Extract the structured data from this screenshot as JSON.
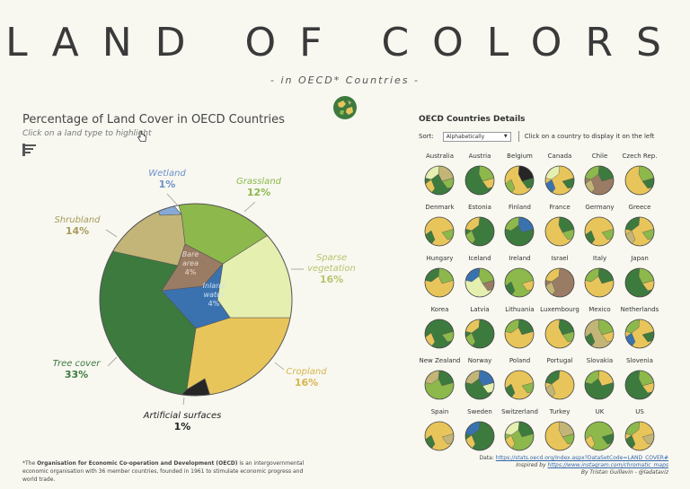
{
  "header": {
    "title": "LAND OF COLORS",
    "subtitle": "- in OECD* Countries -"
  },
  "left": {
    "title": "Percentage of Land Cover in OECD Countries",
    "hint": "Click on a land type to highlight"
  },
  "colors": {
    "tree_cover": "#3d7a3e",
    "cropland": "#e8c55a",
    "sparse_vegetation": "#e4efb0",
    "grassland": "#8db84b",
    "wetland": "#86a9d6",
    "shrubland": "#c3b577",
    "bare_area": "#9a7b64",
    "inland_water": "#3a72b0",
    "artificial_surfaces": "#262626"
  },
  "chart_data": {
    "type": "pie",
    "title": "Percentage of Land Cover in OECD Countries",
    "slices": [
      {
        "name": "Tree cover",
        "value": 33,
        "label": "33%"
      },
      {
        "name": "Artificial surfaces",
        "value": 1,
        "label": "1%"
      },
      {
        "name": "Cropland",
        "value": 16,
        "label": "16%"
      },
      {
        "name": "Sparse vegetation",
        "value": 16,
        "label": "16%"
      },
      {
        "name": "Grassland",
        "value": 12,
        "label": "12%"
      },
      {
        "name": "Wetland",
        "value": 1,
        "label": "1%"
      },
      {
        "name": "Shrubland",
        "value": 14,
        "label": "14%"
      },
      {
        "name": "Bare area",
        "value": 4,
        "label": "4%"
      },
      {
        "name": "Inland water",
        "value": 4,
        "label": "4%"
      }
    ]
  },
  "labels": {
    "wetland": {
      "name": "Wetland",
      "pct": "1%"
    },
    "grassland": {
      "name": "Grassland",
      "pct": "12%"
    },
    "shrubland": {
      "name": "Shrubland",
      "pct": "14%"
    },
    "sparse": {
      "name1": "Sparse",
      "name2": "vegetation",
      "pct": "16%"
    },
    "bare": {
      "name1": "Bare",
      "name2": "area",
      "pct": "4%"
    },
    "water": {
      "name1": "Inland",
      "name2": "water",
      "pct": "4%"
    },
    "tree": {
      "name": "Tree cover",
      "pct": "33%"
    },
    "cropland": {
      "name": "Cropland",
      "pct": "16%"
    },
    "artificial": {
      "name": "Artificial surfaces",
      "pct": "1%"
    }
  },
  "right": {
    "title": "OECD Countries Details",
    "sort_label": "Sort:",
    "sort_value": "Alphabetically",
    "hint": "Click on a country to display it on the left"
  },
  "countries": [
    {
      "name": "Australia",
      "mix": [
        "tree_cover",
        "shrubland",
        "sparse_vegetation",
        "cropland",
        "grassland"
      ]
    },
    {
      "name": "Austria",
      "mix": [
        "tree_cover",
        "cropland",
        "grassland"
      ]
    },
    {
      "name": "Belgium",
      "mix": [
        "cropland",
        "grassland",
        "tree_cover",
        "artificial_surfaces"
      ]
    },
    {
      "name": "Canada",
      "mix": [
        "cropland",
        "sparse_vegetation",
        "inland_water",
        "tree_cover"
      ]
    },
    {
      "name": "Chile",
      "mix": [
        "bare_area",
        "tree_cover",
        "grassland",
        "shrubland"
      ]
    },
    {
      "name": "Czech Rep.",
      "mix": [
        "cropland",
        "tree_cover",
        "grassland"
      ]
    },
    {
      "name": "Denmark",
      "mix": [
        "cropland",
        "tree_cover",
        "grassland"
      ]
    },
    {
      "name": "Estonia",
      "mix": [
        "tree_cover",
        "cropland",
        "grassland"
      ]
    },
    {
      "name": "Finland",
      "mix": [
        "tree_cover",
        "inland_water",
        "grassland"
      ]
    },
    {
      "name": "France",
      "mix": [
        "cropland",
        "grassland",
        "tree_cover"
      ]
    },
    {
      "name": "Germany",
      "mix": [
        "cropland",
        "tree_cover",
        "grassland"
      ]
    },
    {
      "name": "Greece",
      "mix": [
        "cropland",
        "tree_cover",
        "shrubland",
        "grassland"
      ]
    },
    {
      "name": "Hungary",
      "mix": [
        "cropland",
        "grassland",
        "tree_cover"
      ]
    },
    {
      "name": "Iceland",
      "mix": [
        "sparse_vegetation",
        "bare_area",
        "grassland",
        "inland_water"
      ]
    },
    {
      "name": "Ireland",
      "mix": [
        "grassland",
        "tree_cover",
        "cropland"
      ]
    },
    {
      "name": "Israel",
      "mix": [
        "bare_area",
        "cropland",
        "shrubland"
      ]
    },
    {
      "name": "Italy",
      "mix": [
        "cropland",
        "tree_cover",
        "grassland"
      ]
    },
    {
      "name": "Japan",
      "mix": [
        "tree_cover",
        "cropland",
        "grassland"
      ]
    },
    {
      "name": "Korea",
      "mix": [
        "tree_cover",
        "cropland",
        "grassland"
      ]
    },
    {
      "name": "Latvia",
      "mix": [
        "tree_cover",
        "cropland",
        "grassland"
      ]
    },
    {
      "name": "Lithuania",
      "mix": [
        "cropland",
        "tree_cover",
        "grassland"
      ]
    },
    {
      "name": "Luxembourg",
      "mix": [
        "cropland",
        "grassland",
        "tree_cover"
      ]
    },
    {
      "name": "Mexico",
      "mix": [
        "shrubland",
        "tree_cover",
        "cropland",
        "grassland"
      ]
    },
    {
      "name": "Netherlands",
      "mix": [
        "cropland",
        "grassland",
        "inland_water",
        "tree_cover"
      ]
    },
    {
      "name": "New Zealand",
      "mix": [
        "grassland",
        "tree_cover",
        "shrubland"
      ]
    },
    {
      "name": "Norway",
      "mix": [
        "tree_cover",
        "sparse_vegetation",
        "inland_water",
        "shrubland"
      ]
    },
    {
      "name": "Poland",
      "mix": [
        "cropland",
        "tree_cover",
        "grassland"
      ]
    },
    {
      "name": "Portugal",
      "mix": [
        "cropland",
        "tree_cover",
        "shrubland"
      ]
    },
    {
      "name": "Slovakia",
      "mix": [
        "tree_cover",
        "cropland",
        "grassland"
      ]
    },
    {
      "name": "Slovenia",
      "mix": [
        "tree_cover",
        "cropland",
        "grassland"
      ]
    },
    {
      "name": "Spain",
      "mix": [
        "cropland",
        "tree_cover",
        "shrubland"
      ]
    },
    {
      "name": "Sweden",
      "mix": [
        "tree_cover",
        "inland_water",
        "cropland"
      ]
    },
    {
      "name": "Switzerland",
      "mix": [
        "grassland",
        "tree_cover",
        "sparse_vegetation",
        "cropland"
      ]
    },
    {
      "name": "Turkey",
      "mix": [
        "cropland",
        "grassland",
        "shrubland"
      ]
    },
    {
      "name": "UK",
      "mix": [
        "grassland",
        "cropland",
        "tree_cover"
      ]
    },
    {
      "name": "US",
      "mix": [
        "cropland",
        "grassland",
        "tree_cover",
        "shrubland"
      ]
    }
  ],
  "footnote": {
    "part1": "*The ",
    "bold": "Organisation for Economic Co-operation and Development (OECD)",
    "part2": " is an intergovernmental economic organisation with 36 member countries, founded in 1961 to stimulate economic progress and world trade."
  },
  "source": {
    "data_label": "Data:",
    "data_url": "https://stats.oecd.org/Index.aspx?DataSetCode=LAND_COVER#",
    "inspired_label": "Inspired by",
    "inspired_url": "https://www.instagram.com/chromatic_maps",
    "author": "By Tristan Guillevin - @ladataviz"
  }
}
